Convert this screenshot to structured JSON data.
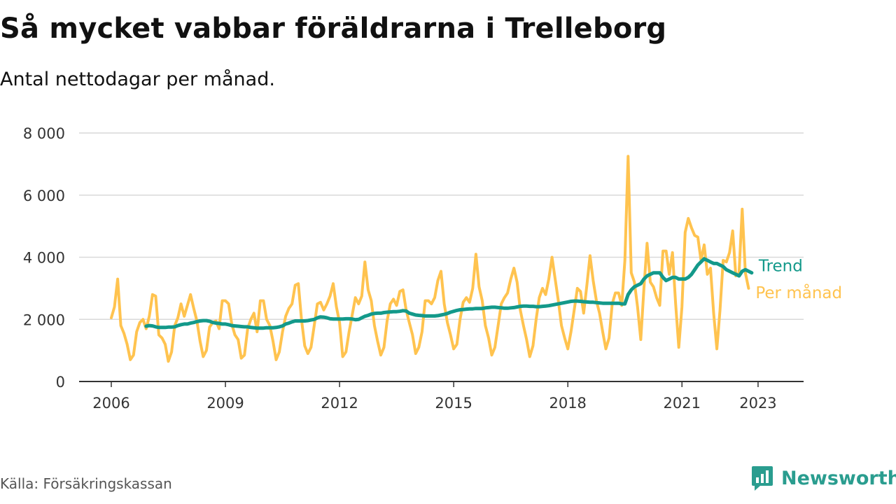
{
  "title": "Så mycket vabbar föräldrarna i Trelleborg",
  "subtitle": "Antal nettodagar per månad.",
  "source": "Källa: Försäkringskassan",
  "brand": "Newsworthy",
  "colors": {
    "monthly": "#ffc34f",
    "trend": "#13998a",
    "grid": "#d9d9d9",
    "axis": "#333333",
    "brand": "#2a9d8f"
  },
  "chart_data": {
    "type": "line",
    "title": "Så mycket vabbar föräldrarna i Trelleborg",
    "subtitle": "Antal nettodagar per månad.",
    "xlabel": "",
    "ylabel": "",
    "x_range": [
      2006,
      2024.2
    ],
    "ylim": [
      0,
      8000
    ],
    "y_ticks": [
      0,
      2000,
      4000,
      6000,
      8000
    ],
    "y_tick_labels": [
      "0",
      "2 000",
      "4 000",
      "6 000",
      "8 000"
    ],
    "x_ticks": [
      2006,
      2009,
      2012,
      2015,
      2018,
      2021,
      2023
    ],
    "x_tick_labels": [
      "2006",
      "2009",
      "2012",
      "2015",
      "2018",
      "2021",
      "2023"
    ],
    "grid": true,
    "legend": "inline labels at line ends",
    "series": [
      {
        "name": "Per månad",
        "x_start": 2006,
        "step": 0.0833333,
        "values": [
          2050,
          2400,
          3300,
          1800,
          1550,
          1200,
          700,
          850,
          1600,
          1900,
          2000,
          1700,
          2100,
          2800,
          2750,
          1500,
          1400,
          1200,
          650,
          950,
          1800,
          2050,
          2500,
          2100,
          2450,
          2800,
          2350,
          1950,
          1300,
          800,
          1000,
          1750,
          1900,
          1950,
          1700,
          2600,
          2600,
          2500,
          1850,
          1500,
          1350,
          750,
          850,
          1700,
          2000,
          2200,
          1600,
          2600,
          2600,
          2000,
          1800,
          1300,
          700,
          950,
          1600,
          2100,
          2350,
          2500,
          3100,
          3150,
          2000,
          1150,
          900,
          1100,
          1800,
          2500,
          2550,
          2300,
          2500,
          2750,
          3150,
          2400,
          1900,
          800,
          950,
          1600,
          2150,
          2700,
          2500,
          2750,
          3850,
          2950,
          2600,
          1800,
          1300,
          850,
          1100,
          1950,
          2500,
          2650,
          2450,
          2900,
          2950,
          2300,
          1900,
          1500,
          900,
          1100,
          1600,
          2600,
          2600,
          2500,
          2700,
          3250,
          3550,
          2500,
          1900,
          1500,
          1050,
          1200,
          2000,
          2550,
          2700,
          2550,
          3000,
          4100,
          3050,
          2600,
          1800,
          1400,
          850,
          1100,
          1800,
          2500,
          2700,
          2850,
          3300,
          3650,
          3200,
          2300,
          1800,
          1350,
          800,
          1150,
          2000,
          2700,
          3000,
          2800,
          3300,
          4000,
          3300,
          2600,
          1800,
          1400,
          1050,
          1600,
          2300,
          3000,
          2900,
          2200,
          3100,
          4050,
          3250,
          2600,
          2200,
          1600,
          1050,
          1400,
          2500,
          2850,
          2850,
          2450,
          3900,
          7250,
          3500,
          3200,
          2400,
          1350,
          3000,
          4450,
          3200,
          3050,
          2700,
          2450,
          4200,
          4200,
          3450,
          4150,
          2500,
          1100,
          2400,
          4800,
          5250,
          4950,
          4700,
          4650,
          3900,
          4400,
          3450,
          3650,
          2200,
          1050,
          2300,
          3900,
          3850,
          4150,
          4850,
          3400,
          3500,
          5550,
          3500,
          3000
        ]
      },
      {
        "name": "Trend",
        "x_start": 2006.917,
        "step": 0.0833333,
        "values": [
          1780,
          1800,
          1790,
          1760,
          1740,
          1740,
          1740,
          1750,
          1750,
          1760,
          1800,
          1830,
          1850,
          1850,
          1880,
          1900,
          1930,
          1950,
          1960,
          1960,
          1940,
          1900,
          1880,
          1870,
          1850,
          1850,
          1830,
          1800,
          1790,
          1780,
          1770,
          1760,
          1760,
          1740,
          1730,
          1720,
          1720,
          1720,
          1730,
          1730,
          1730,
          1740,
          1760,
          1790,
          1850,
          1880,
          1920,
          1950,
          1950,
          1950,
          1950,
          1960,
          1980,
          2000,
          2050,
          2080,
          2070,
          2050,
          2020,
          2010,
          2010,
          2010,
          2010,
          2020,
          2020,
          2010,
          1990,
          2000,
          2050,
          2100,
          2130,
          2170,
          2190,
          2200,
          2200,
          2220,
          2230,
          2240,
          2250,
          2250,
          2260,
          2280,
          2270,
          2200,
          2170,
          2140,
          2130,
          2120,
          2110,
          2110,
          2110,
          2110,
          2120,
          2140,
          2160,
          2190,
          2230,
          2260,
          2290,
          2310,
          2320,
          2330,
          2340,
          2340,
          2350,
          2350,
          2350,
          2370,
          2380,
          2390,
          2390,
          2380,
          2370,
          2360,
          2360,
          2370,
          2380,
          2400,
          2420,
          2430,
          2430,
          2420,
          2420,
          2410,
          2410,
          2420,
          2430,
          2440,
          2460,
          2480,
          2500,
          2520,
          2540,
          2560,
          2580,
          2590,
          2590,
          2580,
          2570,
          2560,
          2550,
          2550,
          2540,
          2530,
          2520,
          2520,
          2520,
          2520,
          2520,
          2520,
          2500,
          2500,
          2800,
          2950,
          3050,
          3100,
          3150,
          3300,
          3400,
          3450,
          3500,
          3500,
          3500,
          3350,
          3250,
          3300,
          3350,
          3350,
          3300,
          3300,
          3300,
          3350,
          3450,
          3600,
          3750,
          3850,
          3950,
          3900,
          3850,
          3800,
          3800,
          3750,
          3700,
          3600,
          3550,
          3500,
          3450,
          3400,
          3550,
          3600,
          3550,
          3500
        ]
      }
    ]
  }
}
